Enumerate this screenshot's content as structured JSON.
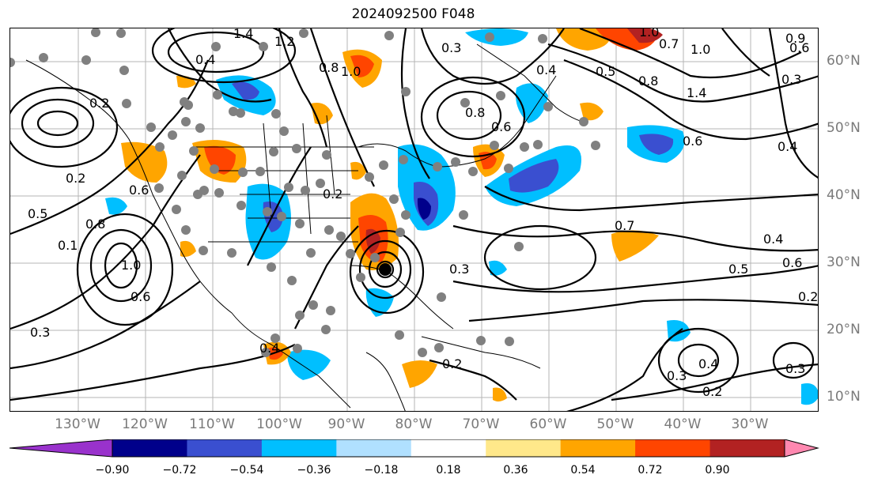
{
  "title": "2024092500 F048",
  "lon_labels": [
    "130°W",
    "120°W",
    "110°W",
    "100°W",
    "90°W",
    "80°W",
    "70°W",
    "60°W",
    "50°W",
    "40°W",
    "30°W"
  ],
  "lat_labels": [
    "60°N",
    "50°N",
    "40°N",
    "30°N",
    "20°N",
    "10°N"
  ],
  "colorbar": {
    "ticks": [
      "−0.90",
      "−0.72",
      "−0.54",
      "−0.36",
      "−0.18",
      "0.18",
      "0.36",
      "0.54",
      "0.72",
      "0.90"
    ],
    "colors": [
      "#9932cc",
      "#00008b",
      "#3a4fd0",
      "#00bfff",
      "#b0e0ff",
      "#ffffff",
      "#ffe88a",
      "#ffa500",
      "#ff4500",
      "#b22222",
      "#ff88b0"
    ]
  },
  "contour_labels": [
    {
      "text": "1.4"
    },
    {
      "text": "1.2"
    },
    {
      "text": "0.4"
    },
    {
      "text": "0.2"
    },
    {
      "text": "0.8"
    },
    {
      "text": "1.0"
    },
    {
      "text": "0.4"
    },
    {
      "text": "0.8"
    },
    {
      "text": "0.6"
    },
    {
      "text": "0.3"
    },
    {
      "text": "1.0"
    },
    {
      "text": "0.7"
    },
    {
      "text": "1.0"
    },
    {
      "text": "0.9"
    },
    {
      "text": "0.6"
    },
    {
      "text": "0.3"
    },
    {
      "text": "1.4"
    },
    {
      "text": "0.8"
    },
    {
      "text": "0.5"
    },
    {
      "text": "0.6"
    },
    {
      "text": "0.4"
    },
    {
      "text": "0.2"
    },
    {
      "text": "0.5"
    },
    {
      "text": "0.8"
    },
    {
      "text": "0.1"
    },
    {
      "text": "1.0"
    },
    {
      "text": "0.6"
    },
    {
      "text": "0.3"
    },
    {
      "text": "0.2"
    },
    {
      "text": "0.4"
    },
    {
      "text": "0.6"
    },
    {
      "text": "0.3"
    },
    {
      "text": "0.2"
    },
    {
      "text": "0.7"
    },
    {
      "text": "0.4"
    },
    {
      "text": "0.6"
    },
    {
      "text": "0.5"
    },
    {
      "text": "0.2"
    },
    {
      "text": "0.4"
    },
    {
      "text": "0.3"
    },
    {
      "text": "0.3"
    },
    {
      "text": "0.2"
    }
  ]
}
